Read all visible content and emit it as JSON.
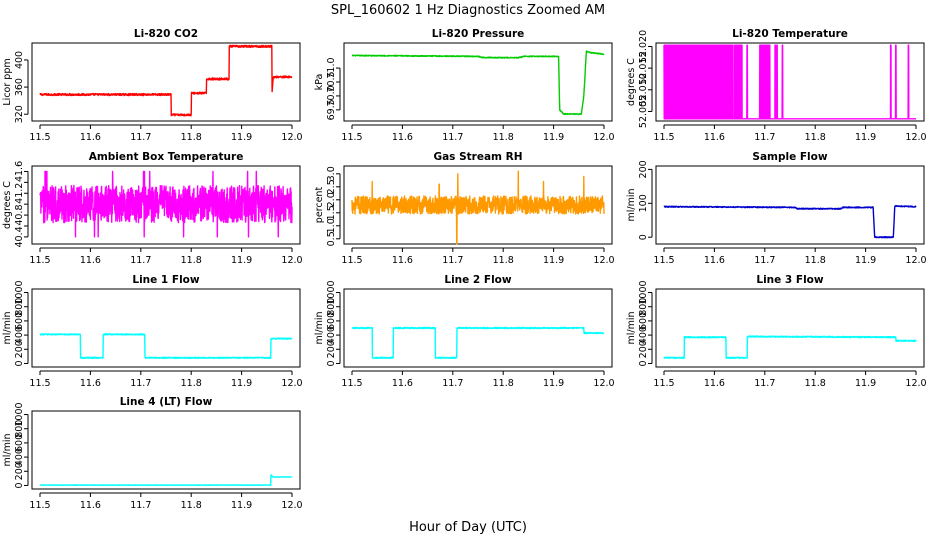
{
  "figure": {
    "title": "SPL_160602  1 Hz Diagnostics Zoomed AM",
    "xlabel": "Hour of Day (UTC)"
  },
  "chart_data": [
    {
      "id": "co2",
      "type": "line",
      "title": "Li-820 CO2",
      "ylabel": "Licor ppm",
      "color": "#ff0000",
      "xlim": [
        11.5,
        12.0
      ],
      "ylim": [
        310,
        425
      ],
      "yticks": [
        320,
        360,
        400
      ],
      "ytick_labels": [
        "320",
        "360",
        "400"
      ],
      "xticks": [
        11.5,
        11.6,
        11.7,
        11.8,
        11.9,
        12.0
      ],
      "xtick_labels": [
        "11.5",
        "11.6",
        "11.7",
        "11.8",
        "11.9",
        "12.0"
      ],
      "noise": 1.5,
      "x": [
        11.5,
        11.76,
        11.76,
        11.8,
        11.8,
        11.83,
        11.83,
        11.875,
        11.875,
        11.96,
        11.96,
        11.963,
        11.97,
        12.0
      ],
      "y": [
        349,
        349,
        319,
        319,
        351,
        351,
        372,
        372,
        420,
        420,
        350,
        375,
        375,
        375
      ]
    },
    {
      "id": "pressure",
      "type": "line",
      "title": "Li-820 Pressure",
      "ylabel": "kPa",
      "color": "#00cc00",
      "xlim": [
        11.5,
        12.0
      ],
      "ylim": [
        69.1,
        71.9
      ],
      "yticks": [
        69.5,
        70.0,
        70.5,
        71.0
      ],
      "ytick_labels": [
        "69.5",
        "70.0",
        "70.5",
        "71.0"
      ],
      "xticks": [
        11.5,
        11.6,
        11.7,
        11.8,
        11.9,
        12.0
      ],
      "xtick_labels": [
        "11.5",
        "11.6",
        "11.7",
        "11.8",
        "11.9",
        "12.0"
      ],
      "noise": 0.015,
      "x": [
        11.5,
        11.6,
        11.75,
        11.76,
        11.83,
        11.84,
        11.91,
        11.912,
        11.92,
        11.955,
        11.96,
        11.965,
        11.975,
        12.0
      ],
      "y": [
        71.45,
        71.44,
        71.42,
        71.38,
        71.37,
        71.42,
        71.42,
        69.5,
        69.35,
        69.35,
        70.0,
        71.6,
        71.55,
        71.5
      ]
    },
    {
      "id": "li820-temperature",
      "type": "line",
      "title": "Li-820 Temperature",
      "ylabel": "degrees C",
      "color": "#ff00ff",
      "xlim": [
        11.5,
        12.0
      ],
      "ylim": [
        52.0028,
        52.0208
      ],
      "yticks": [
        52.005,
        52.01,
        52.015,
        52.02
      ],
      "ytick_labels": [
        "52.005",
        "52.010",
        "52.015",
        "52.020"
      ],
      "xticks": [
        11.5,
        11.6,
        11.7,
        11.8,
        11.9,
        12.0
      ],
      "xtick_labels": [
        "11.5",
        "11.6",
        "11.7",
        "11.8",
        "11.9",
        "12.0"
      ],
      "low": 52.0033,
      "high": 52.0203,
      "toggle_ranges": [
        [
          11.5,
          11.637
        ],
        [
          11.64,
          11.655
        ],
        [
          11.69,
          11.71
        ],
        [
          11.72,
          11.725
        ]
      ],
      "spikes": [
        11.665,
        11.735,
        11.95,
        11.96,
        11.985
      ]
    },
    {
      "id": "ambient-temperature",
      "type": "line",
      "title": "Ambient Box Temperature",
      "ylabel": "degrees C",
      "color": "#ff00ff",
      "xlim": [
        11.5,
        12.0
      ],
      "ylim": [
        40.27,
        41.7
      ],
      "yticks": [
        40.4,
        40.6,
        40.8,
        41.0,
        41.2,
        41.4,
        41.6
      ],
      "ytick_labels": [
        "40.4",
        "",
        "40.8",
        "",
        "41.2",
        "",
        "41.6"
      ],
      "xticks": [
        11.5,
        11.6,
        11.7,
        11.8,
        11.9,
        12.0
      ],
      "xtick_labels": [
        "11.5",
        "11.6",
        "11.7",
        "11.8",
        "11.9",
        "12.0"
      ],
      "center": 41.0,
      "amplitude": 0.34,
      "extremes": [
        40.4,
        41.6
      ]
    },
    {
      "id": "gas-rh",
      "type": "line",
      "title": "Gas Stream RH",
      "ylabel": "percent",
      "color": "#ff9900",
      "xlim": [
        11.5,
        12.0
      ],
      "ylim": [
        0.3,
        3.3
      ],
      "yticks": [
        0.5,
        1.0,
        1.5,
        2.0,
        2.5,
        3.0
      ],
      "ytick_labels": [
        "0.5",
        "1.0",
        "1.5",
        "2.0",
        "2.5",
        "3.0"
      ],
      "xticks": [
        11.5,
        11.6,
        11.7,
        11.8,
        11.9,
        12.0
      ],
      "xtick_labels": [
        "11.5",
        "11.6",
        "11.7",
        "11.8",
        "11.9",
        "12.0"
      ],
      "center": 1.8,
      "amplitude": 0.35,
      "spikes": [
        [
          11.54,
          2.7
        ],
        [
          11.673,
          2.6
        ],
        [
          11.708,
          0.3
        ],
        [
          11.71,
          3.0
        ],
        [
          11.83,
          3.1
        ],
        [
          11.96,
          2.9
        ],
        [
          11.88,
          2.7
        ]
      ]
    },
    {
      "id": "sample-flow",
      "type": "line",
      "title": "Sample Flow",
      "ylabel": "ml/min",
      "color": "#0000cc",
      "xlim": [
        11.5,
        12.0
      ],
      "ylim": [
        -20,
        210
      ],
      "yticks": [
        0,
        100,
        200
      ],
      "ytick_labels": [
        "0",
        "100",
        "200"
      ],
      "xticks": [
        11.5,
        11.6,
        11.7,
        11.8,
        11.9,
        12.0
      ],
      "xtick_labels": [
        "11.5",
        "11.6",
        "11.7",
        "11.8",
        "11.9",
        "12.0"
      ],
      "noise": 1.5,
      "x": [
        11.5,
        11.76,
        11.765,
        11.85,
        11.855,
        11.915,
        11.918,
        11.955,
        11.958,
        12.0
      ],
      "y": [
        90,
        88,
        84,
        84,
        88,
        88,
        0,
        0,
        92,
        90
      ]
    },
    {
      "id": "line1-flow",
      "type": "line",
      "title": "Line 1 Flow",
      "ylabel": "ml/min",
      "color": "#00ffff",
      "xlim": [
        11.5,
        12.0
      ],
      "ylim": [
        -50,
        1050
      ],
      "yticks": [
        0,
        200,
        400,
        600,
        800,
        1000
      ],
      "ytick_labels": [
        "0",
        "200",
        "400",
        "600",
        "800",
        "1000"
      ],
      "xticks": [
        11.5,
        11.6,
        11.7,
        11.8,
        11.9,
        12.0
      ],
      "xtick_labels": [
        "11.5",
        "11.6",
        "11.7",
        "11.8",
        "11.9",
        "12.0"
      ],
      "noise": 8,
      "x": [
        11.5,
        11.58,
        11.58,
        11.625,
        11.625,
        11.708,
        11.708,
        11.958,
        11.958,
        12.0
      ],
      "y": [
        410,
        410,
        80,
        80,
        410,
        410,
        80,
        80,
        350,
        350
      ]
    },
    {
      "id": "line2-flow",
      "type": "line",
      "title": "Line 2 Flow",
      "ylabel": "ml/min",
      "color": "#00ffff",
      "xlim": [
        11.5,
        12.0
      ],
      "ylim": [
        -50,
        1050
      ],
      "yticks": [
        0,
        200,
        400,
        600,
        800,
        1000
      ],
      "ytick_labels": [
        "0",
        "200",
        "400",
        "600",
        "800",
        "1000"
      ],
      "xticks": [
        11.5,
        11.6,
        11.7,
        11.8,
        11.9,
        12.0
      ],
      "xtick_labels": [
        "11.5",
        "11.6",
        "11.7",
        "11.8",
        "11.9",
        "12.0"
      ],
      "noise": 8,
      "x": [
        11.5,
        11.54,
        11.54,
        11.582,
        11.582,
        11.665,
        11.665,
        11.708,
        11.708,
        11.96,
        11.96,
        12.0
      ],
      "y": [
        500,
        500,
        80,
        80,
        500,
        500,
        80,
        80,
        500,
        500,
        430,
        430
      ]
    },
    {
      "id": "line3-flow",
      "type": "line",
      "title": "Line 3 Flow",
      "ylabel": "ml/min",
      "color": "#00ffff",
      "xlim": [
        11.5,
        12.0
      ],
      "ylim": [
        -50,
        1050
      ],
      "yticks": [
        0,
        200,
        400,
        600,
        800,
        1000
      ],
      "ytick_labels": [
        "0",
        "200",
        "400",
        "600",
        "800",
        "1000"
      ],
      "xticks": [
        11.5,
        11.6,
        11.7,
        11.8,
        11.9,
        12.0
      ],
      "xtick_labels": [
        "11.5",
        "11.6",
        "11.7",
        "11.8",
        "11.9",
        "12.0"
      ],
      "noise": 8,
      "x": [
        11.5,
        11.54,
        11.54,
        11.623,
        11.623,
        11.665,
        11.665,
        11.96,
        11.96,
        12.0
      ],
      "y": [
        80,
        80,
        370,
        370,
        80,
        80,
        380,
        370,
        320,
        320
      ]
    },
    {
      "id": "line4-flow",
      "type": "line",
      "title": "Line 4 (LT) Flow",
      "ylabel": "ml/min",
      "color": "#00ffff",
      "xlim": [
        11.5,
        12.0
      ],
      "ylim": [
        -50,
        1050
      ],
      "yticks": [
        0,
        200,
        400,
        600,
        800,
        1000
      ],
      "ytick_labels": [
        "0",
        "200",
        "400",
        "600",
        "800",
        "1000"
      ],
      "xticks": [
        11.5,
        11.6,
        11.7,
        11.8,
        11.9,
        12.0
      ],
      "xtick_labels": [
        "11.5",
        "11.6",
        "11.7",
        "11.8",
        "11.9",
        "12.0"
      ],
      "noise": 3,
      "x": [
        11.5,
        11.958,
        11.958,
        11.962,
        12.0
      ],
      "y": [
        5,
        5,
        150,
        120,
        120
      ]
    }
  ]
}
